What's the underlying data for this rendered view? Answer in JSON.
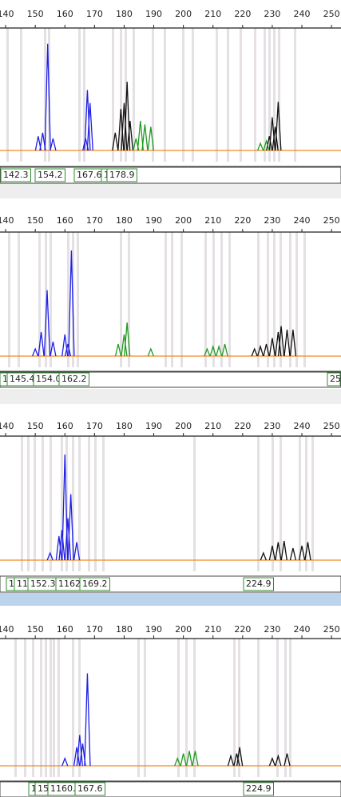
{
  "panels": [
    {
      "type": "electropherogram",
      "xlim": [
        138.1,
        253.2
      ],
      "xticks": [
        140,
        150,
        160,
        170,
        180,
        190,
        200,
        210,
        220,
        230,
        240,
        250
      ],
      "peaks": [
        {
          "color": "#1f1fe6",
          "x": [
            151,
            152.5,
            154.2,
            156,
            167,
            167.6,
            168.5
          ],
          "heights": [
            12,
            15,
            90,
            10,
            10,
            51,
            40
          ]
        },
        {
          "color": "#111111",
          "x": [
            177,
            178.9,
            180,
            181,
            182,
            229,
            230,
            231,
            232
          ],
          "heights": [
            15,
            35,
            40,
            58,
            25,
            12,
            28,
            20,
            41
          ]
        },
        {
          "color": "#1f9a1f",
          "x": [
            184,
            185.5,
            187,
            189,
            226,
            228
          ],
          "heights": [
            10,
            25,
            22,
            20,
            6,
            8
          ]
        }
      ],
      "allele_labels": [
        "142.3",
        "154.2",
        "167.6",
        "1",
        "178.9"
      ]
    },
    {
      "type": "electropherogram",
      "xlim": [
        138.1,
        253.2
      ],
      "xticks": [
        140,
        150,
        160,
        170,
        180,
        190,
        200,
        210,
        220,
        230,
        240,
        250
      ],
      "peaks": [
        {
          "color": "#1f1fe6",
          "x": [
            150,
            152,
            154,
            156,
            160,
            161,
            162.2
          ],
          "heights": [
            6,
            20,
            55,
            12,
            18,
            10,
            88
          ]
        },
        {
          "color": "#1f9a1f",
          "x": [
            178,
            180,
            181,
            189,
            208,
            210,
            212,
            214
          ],
          "heights": [
            10,
            18,
            28,
            6,
            6,
            8,
            8,
            10
          ]
        },
        {
          "color": "#111111",
          "x": [
            224,
            226,
            228,
            230,
            232,
            233,
            235,
            237
          ],
          "heights": [
            6,
            8,
            10,
            15,
            20,
            25,
            22,
            22
          ]
        }
      ],
      "allele_labels": [
        "1",
        "145.4",
        "154.0",
        "162.2",
        "25"
      ]
    },
    {
      "type": "electropherogram",
      "xlim": [
        138.1,
        253.2
      ],
      "xticks": [
        140,
        150,
        160,
        170,
        180,
        190,
        200,
        210,
        220,
        230,
        240,
        250
      ],
      "peaks": [
        {
          "color": "#1f1fe6",
          "x": [
            155,
            158,
            159,
            160,
            161,
            162,
            164
          ],
          "heights": [
            6,
            20,
            25,
            88,
            35,
            55,
            15
          ]
        },
        {
          "color": "#111111",
          "x": [
            227,
            230,
            232,
            234,
            237,
            240,
            242
          ],
          "heights": [
            6,
            12,
            15,
            16,
            10,
            12,
            15
          ]
        }
      ],
      "allele_labels": [
        "1",
        "11",
        "152.3",
        "1162.",
        "169.2",
        "224.9"
      ]
    },
    {
      "type": "electropherogram",
      "xlim": [
        138.1,
        253.2
      ],
      "xticks": [
        140,
        150,
        160,
        170,
        180,
        190,
        200,
        210,
        220,
        230,
        240,
        250
      ],
      "peaks": [
        {
          "color": "#1f1fe6",
          "x": [
            160,
            164,
            165,
            166,
            167.6
          ],
          "heights": [
            6,
            15,
            25,
            18,
            75
          ]
        },
        {
          "color": "#1f9a1f",
          "x": [
            198,
            200,
            202,
            204
          ],
          "heights": [
            6,
            10,
            12,
            12
          ]
        },
        {
          "color": "#111111",
          "x": [
            216,
            218,
            219,
            230,
            232,
            235
          ],
          "heights": [
            8,
            10,
            15,
            6,
            8,
            10
          ]
        }
      ],
      "allele_labels": [
        "1",
        "15",
        "1160.",
        "167.6",
        "224.9"
      ]
    }
  ]
}
